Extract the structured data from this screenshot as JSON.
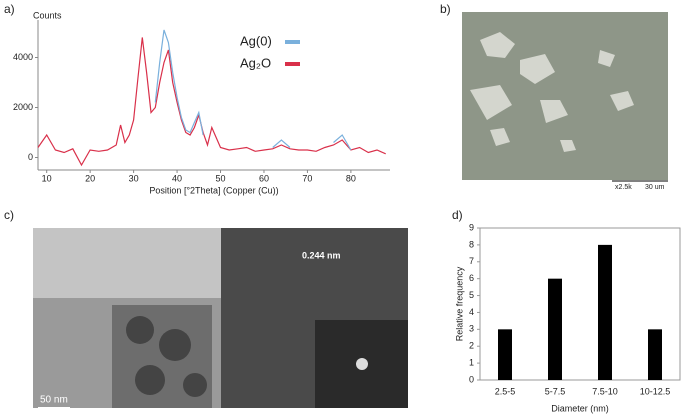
{
  "panels": {
    "a": "a)",
    "b": "b)",
    "c": "c)",
    "d": "d)"
  },
  "sem": {
    "magnification": "x2.5k",
    "scale": "30 um"
  },
  "tem": {
    "scale": "50 nm",
    "lattice": "0.244 nm"
  },
  "chart_data": [
    {
      "type": "line",
      "y_label": "Counts",
      "x_label": "Position [°2Theta] (Copper (Cu))",
      "x": [
        8,
        10,
        12,
        14,
        16,
        18,
        20,
        22,
        24,
        26,
        27,
        28,
        29,
        30,
        31,
        32,
        33,
        34,
        35,
        36,
        37,
        38,
        39,
        40,
        41,
        42,
        43,
        44,
        45,
        46,
        47,
        48,
        50,
        52,
        54,
        56,
        58,
        60,
        62,
        64,
        66,
        68,
        70,
        72,
        74,
        76,
        78,
        80,
        82,
        84,
        86,
        88
      ],
      "xlim": [
        8,
        89
      ],
      "xticks": [
        10,
        20,
        30,
        40,
        50,
        60,
        70,
        80
      ],
      "ylim": [
        -500,
        5500
      ],
      "yticks": [
        0,
        2000,
        4000
      ],
      "legend": "top-right",
      "series": [
        {
          "name": "Ag₂O",
          "color": "#d9304a",
          "values": [
            400,
            900,
            300,
            200,
            350,
            -300,
            300,
            250,
            300,
            500,
            1300,
            600,
            900,
            1500,
            3200,
            4800,
            3400,
            1800,
            2000,
            3000,
            3800,
            4300,
            3000,
            2200,
            1500,
            1000,
            900,
            1200,
            1700,
            1000,
            500,
            1200,
            400,
            300,
            350,
            400,
            250,
            300,
            350,
            500,
            350,
            300,
            300,
            250,
            400,
            500,
            700,
            300,
            400,
            200,
            300,
            150
          ]
        },
        {
          "name": "Ag(0)",
          "color": "#7ab0dc",
          "values": [
            null,
            null,
            null,
            null,
            null,
            null,
            null,
            null,
            null,
            null,
            null,
            null,
            null,
            null,
            null,
            null,
            null,
            null,
            2200,
            3800,
            5100,
            4600,
            3400,
            2400,
            1600,
            1100,
            1000,
            1400,
            1800,
            900,
            null,
            null,
            null,
            null,
            null,
            null,
            null,
            null,
            400,
            700,
            400,
            null,
            null,
            null,
            null,
            600,
            900,
            300,
            null,
            null,
            null,
            null
          ]
        }
      ]
    },
    {
      "type": "bar",
      "y_label": "Relative frequency",
      "x_label": "Diameter (nm)",
      "categories": [
        "2.5-5",
        "5-7.5",
        "7.5-10",
        "10-12.5"
      ],
      "values": [
        3,
        6,
        8,
        3
      ],
      "color": "#000000",
      "ylim": [
        0,
        9
      ],
      "yticks": [
        0,
        1,
        2,
        3,
        4,
        5,
        6,
        7,
        8,
        9
      ]
    }
  ]
}
